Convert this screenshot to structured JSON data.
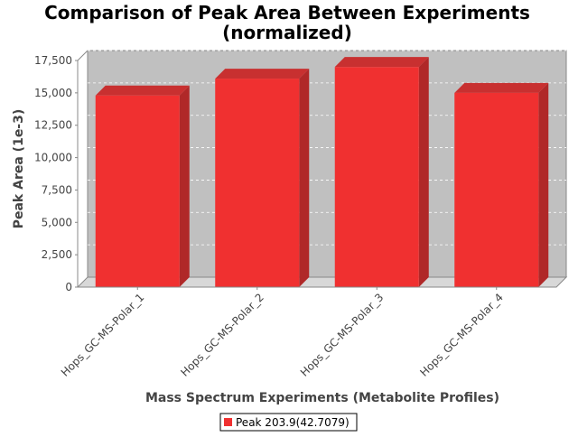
{
  "chart_data": {
    "type": "bar",
    "title_lines": [
      "Comparison of Peak Area Between Experiments",
      "(normalized)"
    ],
    "xlabel": "Mass Spectrum Experiments (Metabolite Profiles)",
    "ylabel": "Peak Area (1e-3)",
    "categories": [
      "Hops_GC-MS-Polar_1",
      "Hops_GC-MS-Polar_2",
      "Hops_GC-MS-Polar_3",
      "Hops_GC-MS-Polar_4"
    ],
    "series": [
      {
        "name": "Peak 203.9(42.7079)",
        "values": [
          14800,
          16100,
          17000,
          15000
        ],
        "color": "#f03030"
      }
    ],
    "ylim": [
      0,
      17500
    ],
    "yticks": [
      0,
      2500,
      5000,
      7500,
      10000,
      12500,
      15000,
      17500
    ],
    "ytick_labels": [
      "0",
      "2,500",
      "5,000",
      "7,500",
      "10,000",
      "12,500",
      "15,000",
      "17,500"
    ],
    "grid": true,
    "legend_position": "bottom",
    "plot_background": "#c0c0c0",
    "bar_side_color": "#b02828",
    "bar_top_color": "#c83030"
  }
}
